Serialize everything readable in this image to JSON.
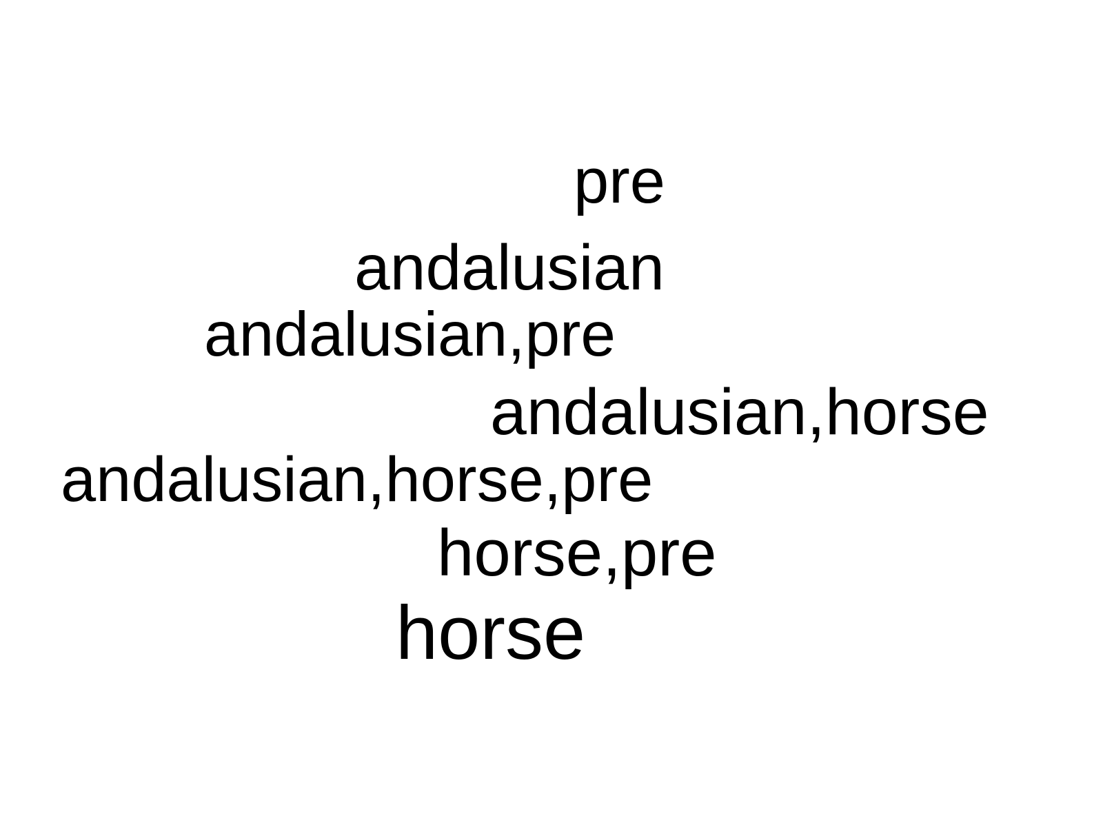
{
  "word_cloud": {
    "words": [
      "pre",
      "andalusian",
      "andalusian,pre",
      "andalusian,horse",
      "andalusian,horse,pre",
      "horse,pre",
      "horse"
    ]
  }
}
